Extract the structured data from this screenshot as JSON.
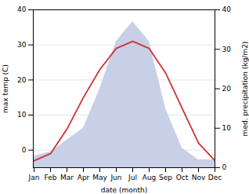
{
  "chart_data": {
    "type": "line",
    "xlabel": "date (month)",
    "ylabel": "max temp (C)",
    "y2label": "med. precipitation (kg/m2)",
    "categories": [
      "Jan",
      "Feb",
      "Mar",
      "Apr",
      "May",
      "Jun",
      "Jul",
      "Aug",
      "Sep",
      "Oct",
      "Nov",
      "Dec"
    ],
    "series": [
      {
        "type": "area",
        "color": "#c8d0e8",
        "axis": "y2",
        "values": [
          3,
          4,
          7,
          10,
          20,
          32,
          37,
          32,
          15,
          5,
          2,
          2
        ]
      },
      {
        "type": "line",
        "color": "#cc3333",
        "axis": "y",
        "values": [
          -3,
          -1,
          6,
          15,
          23,
          29,
          31,
          29,
          22,
          12,
          2,
          -3
        ]
      }
    ],
    "ylim": [
      -5,
      40
    ],
    "yticks": [
      0,
      10,
      20,
      30,
      40
    ],
    "y2lim": [
      0,
      40
    ],
    "y2ticks": [
      0,
      10,
      20,
      30,
      40
    ],
    "grid": true
  }
}
